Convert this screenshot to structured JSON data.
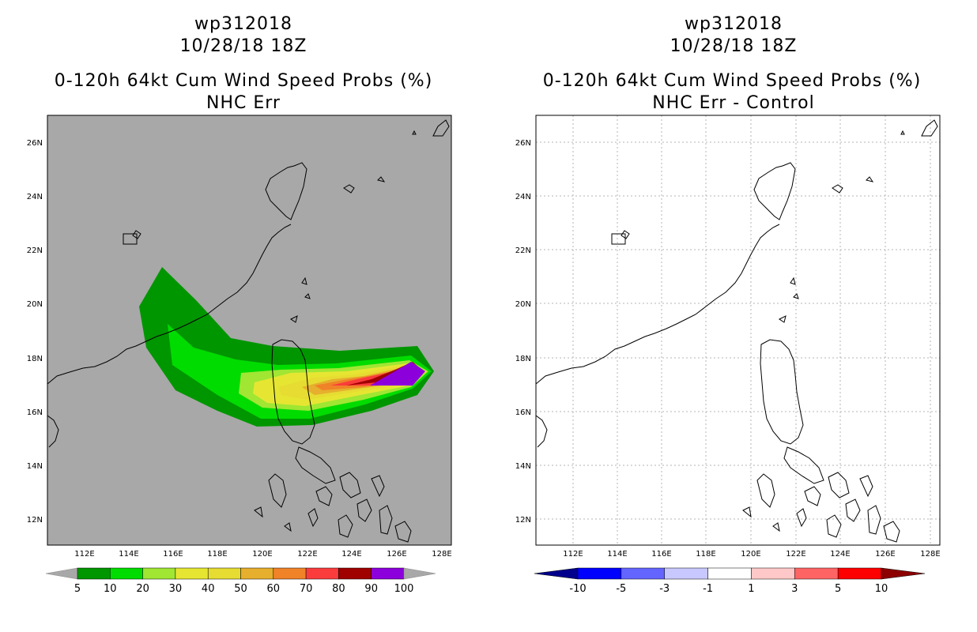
{
  "left": {
    "title1": "wp312018",
    "title2": "10/28/18 18Z",
    "title3": "0-120h 64kt Cum Wind Speed Probs (%)",
    "title4": "NHC Err",
    "bg_color": "#a8a8a8",
    "colorbar": {
      "colors": [
        "#009600",
        "#00dc00",
        "#a0e632",
        "#e6e632",
        "#e6dc32",
        "#e6af2d",
        "#f08228",
        "#fa3c3c",
        "#a00000",
        "#8c00dc"
      ],
      "labels": [
        "5",
        "10",
        "20",
        "30",
        "40",
        "50",
        "60",
        "70",
        "80",
        "90",
        "100"
      ]
    }
  },
  "right": {
    "title1": "wp312018",
    "title2": "10/28/18 18Z",
    "title3": "0-120h 64kt Cum Wind Speed Probs (%)",
    "title4": "NHC Err - Control",
    "bg_color": "#ffffff",
    "colorbar": {
      "colors": [
        "#00008c",
        "#0000ff",
        "#6464ff",
        "#c8c8ff",
        "#ffffff",
        "#ffc8c8",
        "#ff6464",
        "#ff0000",
        "#8c0000"
      ],
      "labels": [
        "-10",
        "-5",
        "-3",
        "-1",
        "1",
        "3",
        "5",
        "10"
      ]
    }
  },
  "axes": {
    "lon_labels": [
      "112E",
      "114E",
      "116E",
      "118E",
      "120E",
      "122E",
      "124E",
      "126E",
      "128E"
    ],
    "lat_labels": [
      "26N",
      "24N",
      "22N",
      "20N",
      "18N",
      "16N",
      "14N",
      "12N"
    ]
  }
}
